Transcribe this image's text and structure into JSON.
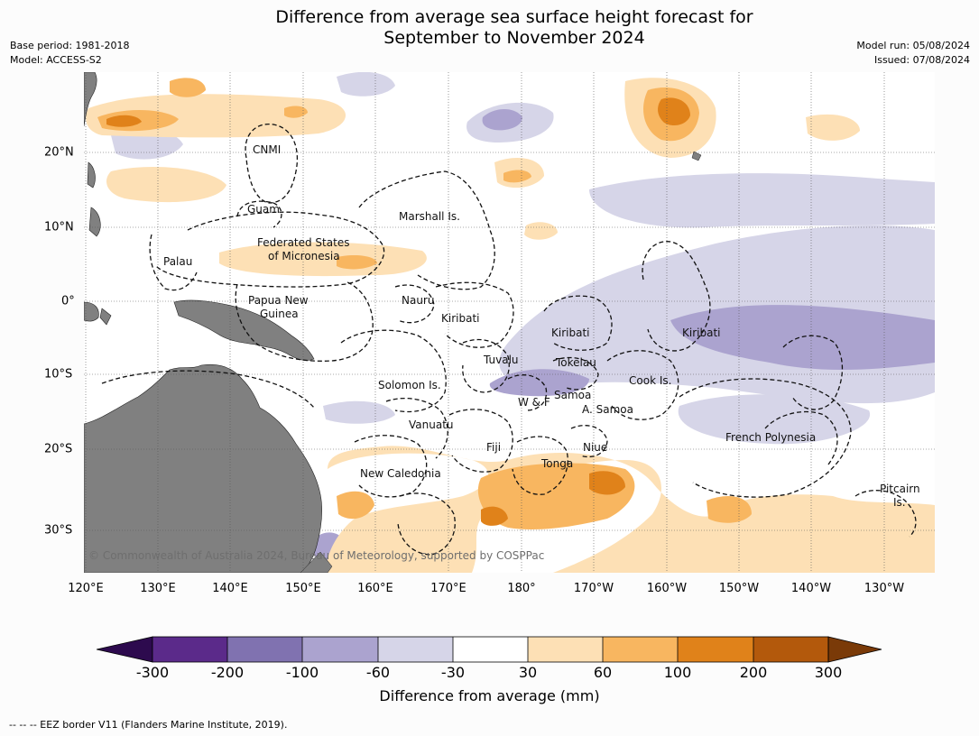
{
  "title": {
    "line1": "Difference from average sea surface height forecast for",
    "line2": "September to November 2024"
  },
  "meta_left": {
    "base_period": "Base period: 1981-2018",
    "model": "Model: ACCESS-S2"
  },
  "meta_right": {
    "model_run": "Model run: 05/08/2024",
    "issued": "Issued: 07/08/2024"
  },
  "map": {
    "lon_labels": [
      "120°E",
      "130°E",
      "140°E",
      "150°E",
      "160°E",
      "170°E",
      "180°",
      "170°W",
      "160°W",
      "150°W",
      "140°W",
      "130°W"
    ],
    "lat_labels": [
      "20°N",
      "10°N",
      "0°",
      "10°S",
      "20°S",
      "30°S"
    ],
    "places": {
      "cnmi": "CNMI",
      "guam": "Guam",
      "marshall": "Marshall Is.",
      "fsm1": "Federated States",
      "fsm2": "of Micronesia",
      "palau": "Palau",
      "png1": "Papua New",
      "png2": "Guinea",
      "nauru": "Nauru",
      "kiribati_w": "Kiribati",
      "kiribati_c": "Kiribati",
      "kiribati_e": "Kiribati",
      "tuvalu": "Tuvalu",
      "tokelau": "Tokelau",
      "solomon": "Solomon Is.",
      "samoa": "Samoa",
      "wf": "W & F",
      "asamoa": "A. Samoa",
      "cook": "Cook Is.",
      "vanuatu": "Vanuatu",
      "fiji": "Fiji",
      "niue": "Niue",
      "tonga": "Tonga",
      "fp": "French Polynesia",
      "newcal": "New Caledonia",
      "pitcairn1": "Pitcairn",
      "pitcairn2": "Is."
    },
    "copyright": "© Commonwealth of Australia 2024, Bureau of Meteorology, supported by COSPPac",
    "colors": {
      "ocean": "#ffffff",
      "land": "#808080",
      "neg_300": "#2d0a4e",
      "neg_200": "#5b2a8a",
      "neg_100": "#8072b0",
      "neg_60": "#aba3cf",
      "neg_30": "#d6d5e8",
      "zero": "#ffffff",
      "pos_30": "#fde0b5",
      "pos_60": "#f8b660",
      "pos_100": "#e0821a",
      "pos_200": "#b3590c",
      "pos_300": "#7a3a08"
    }
  },
  "colorbar": {
    "ticks": [
      "-300",
      "-200",
      "-100",
      "-60",
      "-30",
      "30",
      "60",
      "100",
      "200",
      "300"
    ],
    "label": "Difference from average (mm)"
  },
  "footnote": "--  --  -- EEZ border V11 (Flanders Marine Institute, 2019)."
}
